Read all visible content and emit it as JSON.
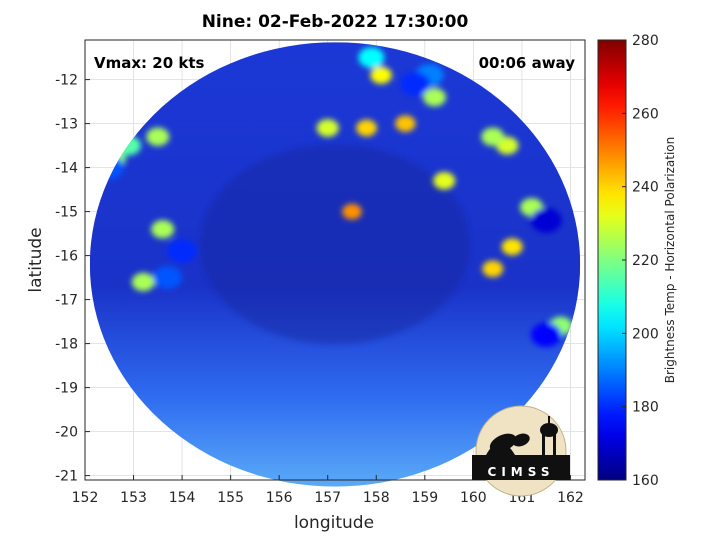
{
  "chart_data": {
    "type": "heatmap",
    "title": "Nine: 02-Feb-2022 17:30:00",
    "xlabel": "longitude",
    "ylabel": "latitude",
    "xlim": [
      152,
      162.3
    ],
    "ylim": [
      -21.1,
      -11.1
    ],
    "xticks": [
      152,
      153,
      154,
      155,
      156,
      157,
      158,
      159,
      160,
      161,
      162
    ],
    "yticks": [
      -12,
      -13,
      -14,
      -15,
      -16,
      -17,
      -18,
      -19,
      -20,
      -21
    ],
    "grid": true,
    "swath": {
      "center_lon": 157.15,
      "center_lat": -16.2,
      "radius_lon": 5.05,
      "radius_lat": 5.05
    },
    "annotations": {
      "vmax": "Vmax: 20 kts",
      "time_away": "00:06 away"
    },
    "colorbar": {
      "label": "Brightness Temp - Horizontal Polarization",
      "range": [
        160,
        280
      ],
      "ticks": [
        160,
        180,
        200,
        220,
        240,
        260,
        280
      ],
      "colormap": "jet"
    },
    "features": [
      {
        "lon": 157.9,
        "lat": -11.5,
        "value": 205
      },
      {
        "lon": 158.8,
        "lat": -12.1,
        "value": 180
      },
      {
        "lon": 159.1,
        "lat": -11.9,
        "value": 190
      },
      {
        "lon": 159.2,
        "lat": -12.4,
        "value": 225
      },
      {
        "lon": 158.1,
        "lat": -11.9,
        "value": 235
      },
      {
        "lon": 153.5,
        "lat": -13.3,
        "value": 225
      },
      {
        "lon": 152.9,
        "lat": -13.5,
        "value": 215
      },
      {
        "lon": 152.5,
        "lat": -14.0,
        "value": 185
      },
      {
        "lon": 152.6,
        "lat": -13.8,
        "value": 220
      },
      {
        "lon": 157.0,
        "lat": -13.1,
        "value": 230
      },
      {
        "lon": 157.8,
        "lat": -13.1,
        "value": 240
      },
      {
        "lon": 158.6,
        "lat": -13.0,
        "value": 242
      },
      {
        "lon": 159.4,
        "lat": -14.3,
        "value": 232
      },
      {
        "lon": 160.4,
        "lat": -13.3,
        "value": 225
      },
      {
        "lon": 160.7,
        "lat": -13.5,
        "value": 230
      },
      {
        "lon": 154.0,
        "lat": -15.9,
        "value": 180
      },
      {
        "lon": 153.6,
        "lat": -15.4,
        "value": 225
      },
      {
        "lon": 153.7,
        "lat": -16.5,
        "value": 185
      },
      {
        "lon": 153.2,
        "lat": -16.6,
        "value": 225
      },
      {
        "lon": 161.5,
        "lat": -15.2,
        "value": 170
      },
      {
        "lon": 161.2,
        "lat": -14.9,
        "value": 225
      },
      {
        "lon": 161.5,
        "lat": -17.8,
        "value": 175
      },
      {
        "lon": 161.8,
        "lat": -17.6,
        "value": 222
      },
      {
        "lon": 160.8,
        "lat": -15.8,
        "value": 238
      },
      {
        "lon": 160.4,
        "lat": -16.3,
        "value": 240
      },
      {
        "lon": 157.5,
        "lat": -15.0,
        "value": 248
      }
    ]
  },
  "logo": {
    "text": "CIMSS"
  },
  "colors": {
    "axes": "#262626",
    "grid": "#dcdcdc",
    "swath_base": "#1d3fd8"
  }
}
